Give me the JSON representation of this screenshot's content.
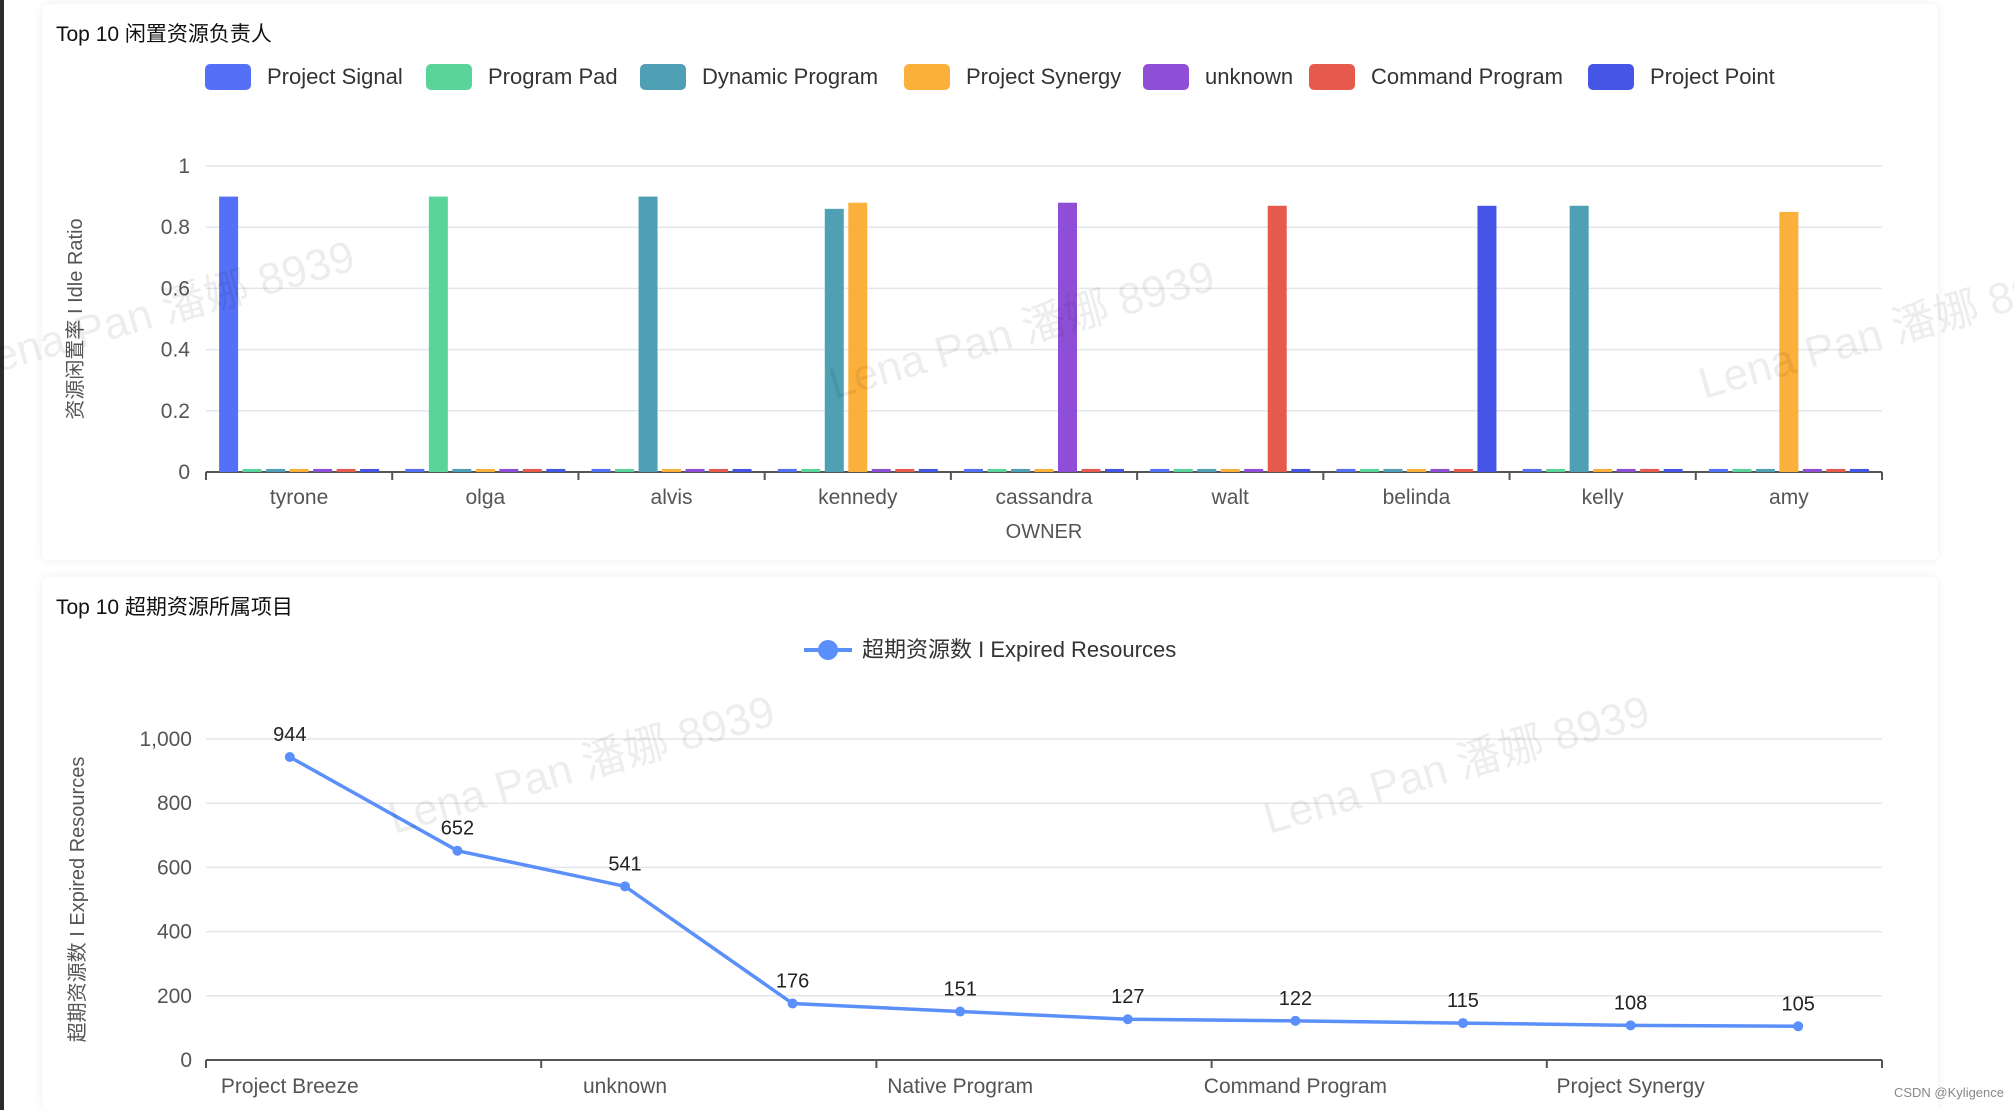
{
  "panel1": {
    "title": "Top 10 闲置资源负责人",
    "chart_data": {
      "type": "bar",
      "categories": [
        "tyrone",
        "olga",
        "alvis",
        "kennedy",
        "cassandra",
        "walt",
        "belinda",
        "kelly",
        "amy"
      ],
      "ylabel": "资源闲置率 I Idle Ratio",
      "xlabel": "OWNER",
      "ylim": [
        0,
        1
      ],
      "yticks": [
        0,
        0.2,
        0.4,
        0.6,
        0.8,
        1
      ],
      "grid": true,
      "legend_position": "top",
      "series": [
        {
          "name": "Project Signal",
          "color": "#5470f6",
          "values": [
            0.9,
            0.01,
            0.01,
            0.01,
            0.01,
            0.01,
            0.01,
            0.01,
            0.01
          ]
        },
        {
          "name": "Program Pad",
          "color": "#5ad49a",
          "values": [
            0.01,
            0.9,
            0.01,
            0.01,
            0.01,
            0.01,
            0.01,
            0.01,
            0.01
          ]
        },
        {
          "name": "Dynamic Program",
          "color": "#4fa0b4",
          "values": [
            0.01,
            0.01,
            0.9,
            0.86,
            0.01,
            0.01,
            0.01,
            0.87,
            0.01
          ]
        },
        {
          "name": "Project Synergy",
          "color": "#fbb03b",
          "values": [
            0.01,
            0.01,
            0.01,
            0.88,
            0.01,
            0.01,
            0.01,
            0.01,
            0.85
          ]
        },
        {
          "name": "unknown",
          "color": "#8e4fd6",
          "values": [
            0.01,
            0.01,
            0.01,
            0.01,
            0.88,
            0.01,
            0.01,
            0.01,
            0.01
          ]
        },
        {
          "name": "Command Program",
          "color": "#e65a4e",
          "values": [
            0.01,
            0.01,
            0.01,
            0.01,
            0.01,
            0.87,
            0.01,
            0.01,
            0.01
          ]
        },
        {
          "name": "Project Point",
          "color": "#4555e6",
          "values": [
            0.01,
            0.01,
            0.01,
            0.01,
            0.01,
            0.01,
            0.87,
            0.01,
            0.01
          ]
        }
      ]
    }
  },
  "panel2": {
    "title": "Top 10 超期资源所属项目",
    "chart_data": {
      "type": "line",
      "x_tick_labels": [
        "Project Breeze",
        "unknown",
        "Native Program",
        "Command Program",
        "Project Synergy"
      ],
      "ylabel": "超期资源数 I Expired Resources",
      "ylim": [
        0,
        1000
      ],
      "yticks": [
        0,
        200,
        400,
        600,
        800,
        1000
      ],
      "ytick_labels": [
        "0",
        "200",
        "400",
        "600",
        "800",
        "1,000"
      ],
      "grid": true,
      "legend_position": "top",
      "series": [
        {
          "name": "超期资源数 I Expired Resources",
          "color": "#5b8ff9",
          "values": [
            944,
            652,
            541,
            176,
            151,
            127,
            122,
            115,
            108,
            105
          ]
        }
      ]
    }
  },
  "watermark_text": "Lena Pan 潘娜 8939",
  "credit": "CSDN @Kyligence"
}
